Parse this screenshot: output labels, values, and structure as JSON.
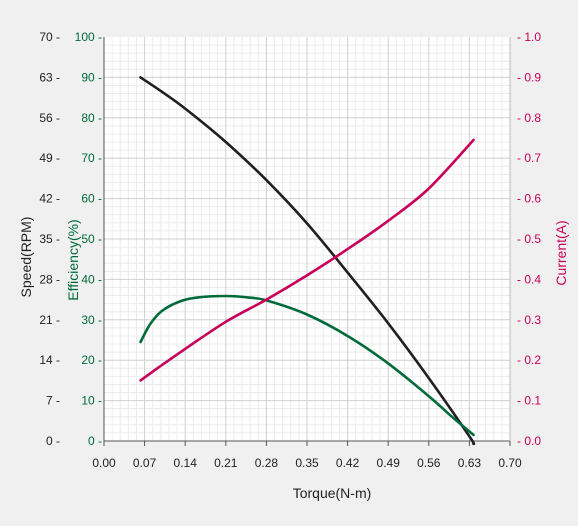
{
  "chart_data": {
    "type": "line",
    "xlabel": "Torque(N-m)",
    "x_ticks": [
      "0.00",
      "0.07",
      "0.14",
      "0.21",
      "0.28",
      "0.35",
      "0.42",
      "0.49",
      "0.56",
      "0.63",
      "0.70"
    ],
    "xlim": [
      0,
      0.7
    ],
    "grid": true,
    "axes": {
      "speed": {
        "label": "Speed(RPM)",
        "ticks": [
          "0",
          "7",
          "14",
          "21",
          "28",
          "35",
          "42",
          "49",
          "56",
          "63",
          "70"
        ],
        "lim": [
          0,
          70
        ],
        "side": "left-outer",
        "color": "#222222"
      },
      "efficiency": {
        "label": "Efficiency(%)",
        "ticks": [
          "0",
          "10",
          "20",
          "30",
          "40",
          "50",
          "60",
          "70",
          "80",
          "90",
          "100"
        ],
        "lim": [
          0,
          100
        ],
        "side": "left-inner",
        "color": "#006b3a"
      },
      "current": {
        "label": "Current(A)",
        "ticks": [
          "0.0",
          "0.1",
          "0.2",
          "0.3",
          "0.4",
          "0.5",
          "0.6",
          "0.7",
          "0.8",
          "0.9",
          "1.0"
        ],
        "lim": [
          0,
          1.0
        ],
        "side": "right",
        "color": "#c8005a"
      }
    },
    "series": [
      {
        "axis": "speed",
        "color": "#231f20",
        "points": [
          [
            0.063,
            63.0
          ],
          [
            0.1,
            60.5
          ],
          [
            0.14,
            57.6
          ],
          [
            0.21,
            51.8
          ],
          [
            0.28,
            45.2
          ],
          [
            0.35,
            37.7
          ],
          [
            0.42,
            29.2
          ],
          [
            0.49,
            20.4
          ],
          [
            0.56,
            10.9
          ],
          [
            0.63,
            0.8
          ],
          [
            0.637,
            -0.5
          ]
        ]
      },
      {
        "axis": "efficiency",
        "color": "#006b3a",
        "points": [
          [
            0.063,
            24.5
          ],
          [
            0.08,
            29.0
          ],
          [
            0.1,
            32.2
          ],
          [
            0.13,
            34.5
          ],
          [
            0.16,
            35.5
          ],
          [
            0.21,
            35.9
          ],
          [
            0.25,
            35.5
          ],
          [
            0.28,
            34.8
          ],
          [
            0.35,
            31.3
          ],
          [
            0.42,
            26.0
          ],
          [
            0.49,
            19.2
          ],
          [
            0.56,
            11.1
          ],
          [
            0.6,
            6.0
          ],
          [
            0.637,
            1.5
          ]
        ]
      },
      {
        "axis": "current",
        "color": "#c8005a",
        "points": [
          [
            0.063,
            0.15
          ],
          [
            0.1,
            0.188
          ],
          [
            0.14,
            0.228
          ],
          [
            0.21,
            0.295
          ],
          [
            0.28,
            0.35
          ],
          [
            0.35,
            0.41
          ],
          [
            0.42,
            0.475
          ],
          [
            0.49,
            0.545
          ],
          [
            0.56,
            0.625
          ],
          [
            0.637,
            0.745
          ]
        ]
      }
    ]
  }
}
